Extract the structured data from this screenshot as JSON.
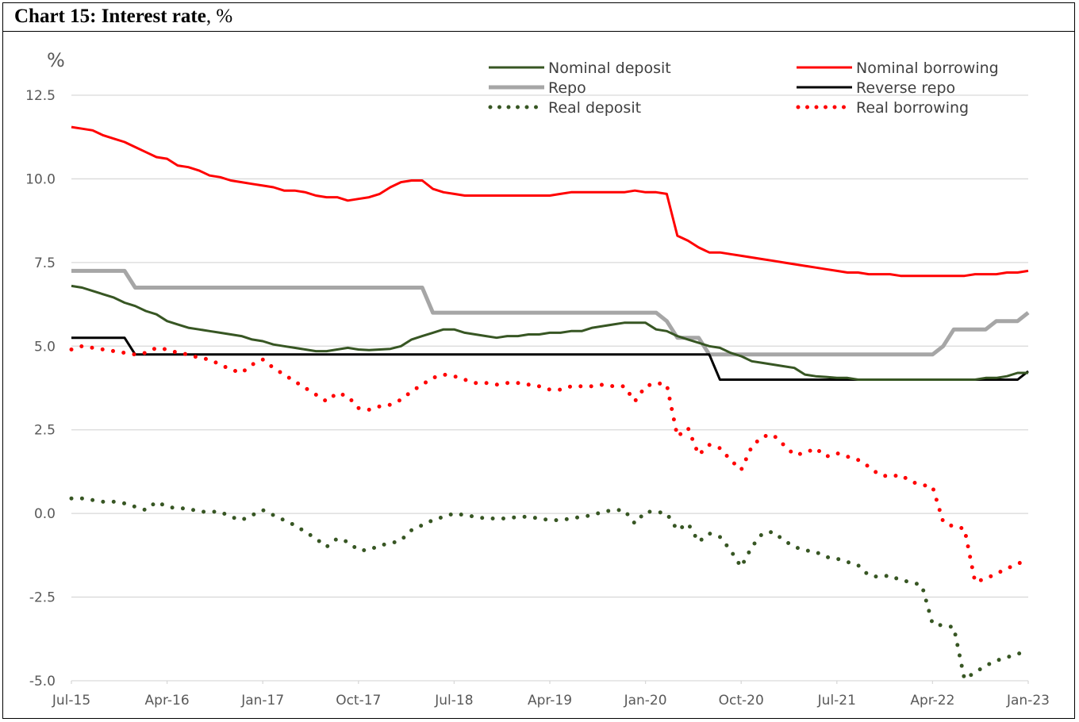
{
  "title": {
    "bold": "Chart 15: Interest rate",
    "rest": ", %"
  },
  "chart_data": {
    "type": "line",
    "title": "Chart 15: Interest rate, %",
    "ylabel": "%",
    "ylim": [
      -5.0,
      12.5
    ],
    "yticks": [
      "12.5",
      "10.0",
      "7.5",
      "5.0",
      "2.5",
      "0.0",
      "-2.5",
      "-5.0"
    ],
    "ytick_values": [
      12.5,
      10.0,
      7.5,
      5.0,
      2.5,
      0.0,
      -2.5,
      -5.0
    ],
    "xticks": [
      "Jul-15",
      "Apr-16",
      "Jan-17",
      "Oct-17",
      "Jul-18",
      "Apr-19",
      "Jan-20",
      "Oct-20",
      "Jul-21",
      "Apr-22",
      "Jan-23"
    ],
    "xtick_index": [
      0,
      9,
      18,
      27,
      36,
      45,
      54,
      63,
      72,
      81,
      90
    ],
    "x_start": "Jul-15",
    "grid": true,
    "legend_position": "top",
    "series": [
      {
        "name": "Nominal deposit",
        "color": "#375623",
        "style": "solid",
        "width": 3,
        "values": [
          6.8,
          6.75,
          6.65,
          6.55,
          6.45,
          6.3,
          6.2,
          6.05,
          5.95,
          5.75,
          5.65,
          5.55,
          5.5,
          5.45,
          5.4,
          5.35,
          5.3,
          5.2,
          5.15,
          5.05,
          5.0,
          4.95,
          4.9,
          4.85,
          4.85,
          4.9,
          4.95,
          4.9,
          4.88,
          4.9,
          4.92,
          5.0,
          5.2,
          5.3,
          5.4,
          5.5,
          5.5,
          5.4,
          5.35,
          5.3,
          5.25,
          5.3,
          5.3,
          5.35,
          5.35,
          5.4,
          5.4,
          5.45,
          5.45,
          5.55,
          5.6,
          5.65,
          5.7,
          5.7,
          5.7,
          5.5,
          5.45,
          5.3,
          5.2,
          5.1,
          5.0,
          4.95,
          4.8,
          4.7,
          4.55,
          4.5,
          4.45,
          4.4,
          4.35,
          4.15,
          4.1,
          4.08,
          4.05,
          4.05,
          4.0,
          4.0,
          4.0,
          4.0,
          4.0,
          4.0,
          4.0,
          4.0,
          4.0,
          4.0,
          4.0,
          4.0,
          4.05,
          4.05,
          4.1,
          4.2,
          4.2
        ]
      },
      {
        "name": "Nominal borrowing",
        "color": "#ff0000",
        "style": "solid",
        "width": 3,
        "values": [
          11.55,
          11.5,
          11.45,
          11.3,
          11.2,
          11.1,
          10.95,
          10.8,
          10.65,
          10.6,
          10.4,
          10.35,
          10.25,
          10.1,
          10.05,
          9.95,
          9.9,
          9.85,
          9.8,
          9.75,
          9.65,
          9.65,
          9.6,
          9.5,
          9.45,
          9.45,
          9.35,
          9.4,
          9.45,
          9.55,
          9.75,
          9.9,
          9.95,
          9.95,
          9.7,
          9.6,
          9.55,
          9.5,
          9.5,
          9.5,
          9.5,
          9.5,
          9.5,
          9.5,
          9.5,
          9.5,
          9.55,
          9.6,
          9.6,
          9.6,
          9.6,
          9.6,
          9.6,
          9.65,
          9.6,
          9.6,
          9.55,
          8.3,
          8.15,
          7.95,
          7.8,
          7.8,
          7.75,
          7.7,
          7.65,
          7.6,
          7.55,
          7.5,
          7.45,
          7.4,
          7.35,
          7.3,
          7.25,
          7.2,
          7.2,
          7.15,
          7.15,
          7.15,
          7.1,
          7.1,
          7.1,
          7.1,
          7.1,
          7.1,
          7.1,
          7.15,
          7.15,
          7.15,
          7.2,
          7.2,
          7.25
        ]
      },
      {
        "name": "Repo",
        "color": "#a6a6a6",
        "style": "solid",
        "width": 5,
        "values": [
          7.25,
          7.25,
          7.25,
          7.25,
          7.25,
          7.25,
          6.75,
          6.75,
          6.75,
          6.75,
          6.75,
          6.75,
          6.75,
          6.75,
          6.75,
          6.75,
          6.75,
          6.75,
          6.75,
          6.75,
          6.75,
          6.75,
          6.75,
          6.75,
          6.75,
          6.75,
          6.75,
          6.75,
          6.75,
          6.75,
          6.75,
          6.75,
          6.75,
          6.75,
          6.0,
          6.0,
          6.0,
          6.0,
          6.0,
          6.0,
          6.0,
          6.0,
          6.0,
          6.0,
          6.0,
          6.0,
          6.0,
          6.0,
          6.0,
          6.0,
          6.0,
          6.0,
          6.0,
          6.0,
          6.0,
          6.0,
          5.75,
          5.25,
          5.25,
          5.25,
          4.75,
          4.75,
          4.75,
          4.75,
          4.75,
          4.75,
          4.75,
          4.75,
          4.75,
          4.75,
          4.75,
          4.75,
          4.75,
          4.75,
          4.75,
          4.75,
          4.75,
          4.75,
          4.75,
          4.75,
          4.75,
          4.75,
          5.0,
          5.5,
          5.5,
          5.5,
          5.5,
          5.75,
          5.75,
          5.75,
          6.0
        ]
      },
      {
        "name": "Reverse repo",
        "color": "#000000",
        "style": "solid",
        "width": 3,
        "values": [
          5.25,
          5.25,
          5.25,
          5.25,
          5.25,
          5.25,
          4.75,
          4.75,
          4.75,
          4.75,
          4.75,
          4.75,
          4.75,
          4.75,
          4.75,
          4.75,
          4.75,
          4.75,
          4.75,
          4.75,
          4.75,
          4.75,
          4.75,
          4.75,
          4.75,
          4.75,
          4.75,
          4.75,
          4.75,
          4.75,
          4.75,
          4.75,
          4.75,
          4.75,
          4.75,
          4.75,
          4.75,
          4.75,
          4.75,
          4.75,
          4.75,
          4.75,
          4.75,
          4.75,
          4.75,
          4.75,
          4.75,
          4.75,
          4.75,
          4.75,
          4.75,
          4.75,
          4.75,
          4.75,
          4.75,
          4.75,
          4.75,
          4.75,
          4.75,
          4.75,
          4.75,
          4.0,
          4.0,
          4.0,
          4.0,
          4.0,
          4.0,
          4.0,
          4.0,
          4.0,
          4.0,
          4.0,
          4.0,
          4.0,
          4.0,
          4.0,
          4.0,
          4.0,
          4.0,
          4.0,
          4.0,
          4.0,
          4.0,
          4.0,
          4.0,
          4.0,
          4.0,
          4.0,
          4.0,
          4.0,
          4.25
        ]
      },
      {
        "name": "Real deposit",
        "color": "#375623",
        "style": "dotted",
        "width": 5,
        "values": [
          0.45,
          0.45,
          0.4,
          0.35,
          0.35,
          0.3,
          0.2,
          0.1,
          0.35,
          0.2,
          0.15,
          0.15,
          0.05,
          0.05,
          0.05,
          -0.1,
          -0.2,
          -0.05,
          0.1,
          -0.05,
          -0.2,
          -0.35,
          -0.55,
          -0.75,
          -1.0,
          -0.75,
          -0.85,
          -1.1,
          -1.1,
          -0.95,
          -0.9,
          -0.8,
          -0.5,
          -0.35,
          -0.2,
          -0.1,
          0.0,
          -0.05,
          -0.1,
          -0.15,
          -0.15,
          -0.15,
          -0.1,
          -0.1,
          -0.15,
          -0.2,
          -0.2,
          -0.15,
          -0.1,
          -0.05,
          0.05,
          0.1,
          0.1,
          -0.3,
          0.05,
          0.05,
          0.0,
          -0.5,
          -0.3,
          -0.85,
          -0.6,
          -0.7,
          -1.1,
          -1.6,
          -1.0,
          -0.6,
          -0.55,
          -0.8,
          -1.0,
          -1.1,
          -1.15,
          -1.3,
          -1.35,
          -1.45,
          -1.55,
          -1.85,
          -1.9,
          -1.85,
          -2.0,
          -2.05,
          -2.15,
          -3.3,
          -3.35,
          -3.4,
          -4.95,
          -4.75,
          -4.55,
          -4.4,
          -4.3,
          -4.2,
          -4.1
        ]
      },
      {
        "name": "Real borrowing",
        "color": "#ff0000",
        "style": "dotted",
        "width": 5,
        "values": [
          4.9,
          5.0,
          4.95,
          4.9,
          4.85,
          4.8,
          4.75,
          4.8,
          4.95,
          4.9,
          4.8,
          4.75,
          4.65,
          4.6,
          4.45,
          4.3,
          4.2,
          4.45,
          4.6,
          4.35,
          4.15,
          3.95,
          3.75,
          3.55,
          3.35,
          3.6,
          3.5,
          3.15,
          3.1,
          3.2,
          3.25,
          3.4,
          3.65,
          3.85,
          4.05,
          4.15,
          4.1,
          4.0,
          3.9,
          3.9,
          3.85,
          3.9,
          3.9,
          3.85,
          3.8,
          3.7,
          3.7,
          3.8,
          3.8,
          3.8,
          3.85,
          3.8,
          3.8,
          3.35,
          3.8,
          3.9,
          3.85,
          2.3,
          2.55,
          1.75,
          2.05,
          1.95,
          1.6,
          1.3,
          2.0,
          2.3,
          2.35,
          2.05,
          1.75,
          1.8,
          1.95,
          1.7,
          1.8,
          1.7,
          1.6,
          1.4,
          1.15,
          1.1,
          1.15,
          0.95,
          0.85,
          0.8,
          -0.25,
          -0.4,
          -0.45,
          -2.05,
          -1.95,
          -1.8,
          -1.65,
          -1.5,
          -1.4
        ]
      }
    ]
  }
}
